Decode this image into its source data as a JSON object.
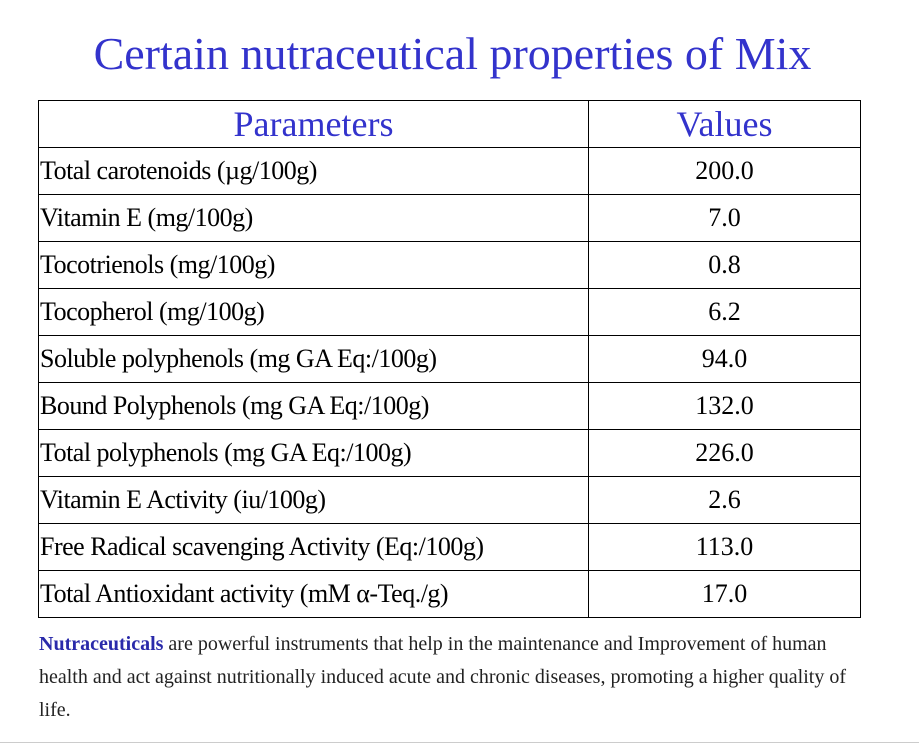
{
  "slide": {
    "title": "Certain nutraceutical properties of Mix"
  },
  "table": {
    "headers": {
      "parameters": "Parameters",
      "values": "Values"
    },
    "rows": [
      {
        "parameter": "Total carotenoids (µg/100g)",
        "value": "200.0"
      },
      {
        "parameter": "Vitamin E (mg/100g)",
        "value": "7.0"
      },
      {
        "parameter": "Tocotrienols (mg/100g)",
        "value": "0.8"
      },
      {
        "parameter": "Tocopherol (mg/100g)",
        "value": "6.2"
      },
      {
        "parameter": "Soluble polyphenols (mg GA Eq:/100g)",
        "value": "94.0"
      },
      {
        "parameter": "Bound Polyphenols (mg GA Eq:/100g)",
        "value": "132.0"
      },
      {
        "parameter": "Total polyphenols (mg GA Eq:/100g)",
        "value": "226.0"
      },
      {
        "parameter": "Vitamin E Activity (iu/100g)",
        "value": "2.6"
      },
      {
        "parameter": "Free Radical scavenging Activity (Eq:/100g)",
        "value": "113.0"
      },
      {
        "parameter": "Total Antioxidant activity (mM α-Teq./g)",
        "value": "17.0"
      }
    ]
  },
  "note": {
    "term": "Nutraceuticals",
    "text": " are powerful instruments that help in the maintenance and Improvement of human health and act against nutritionally induced acute and chronic diseases, promoting a higher quality of life."
  },
  "colors": {
    "accent": "#3333cc",
    "term": "#2a2aaa",
    "text": "#000000"
  }
}
